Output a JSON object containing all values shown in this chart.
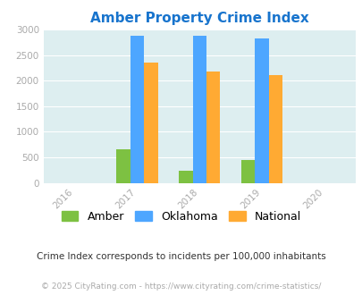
{
  "title": "Amber Property Crime Index",
  "title_color": "#1874cd",
  "years": [
    2016,
    2017,
    2018,
    2019,
    2020
  ],
  "bar_years": [
    2017,
    2018,
    2019
  ],
  "amber_values": [
    650,
    230,
    440
  ],
  "oklahoma_values": [
    2875,
    2875,
    2825
  ],
  "national_values": [
    2350,
    2175,
    2100
  ],
  "amber_color": "#7dc142",
  "oklahoma_color": "#4da6ff",
  "national_color": "#ffaa33",
  "bg_color": "#ddeef0",
  "ylim": [
    0,
    3000
  ],
  "yticks": [
    0,
    500,
    1000,
    1500,
    2000,
    2500,
    3000
  ],
  "bar_width": 0.22,
  "legend_labels": [
    "Amber",
    "Oklahoma",
    "National"
  ],
  "footnote": "Crime Index corresponds to incidents per 100,000 inhabitants",
  "footnote_color": "#333333",
  "copyright": "© 2025 CityRating.com - https://www.cityrating.com/crime-statistics/",
  "copyright_color": "#aaaaaa",
  "tick_color": "#aaaaaa"
}
